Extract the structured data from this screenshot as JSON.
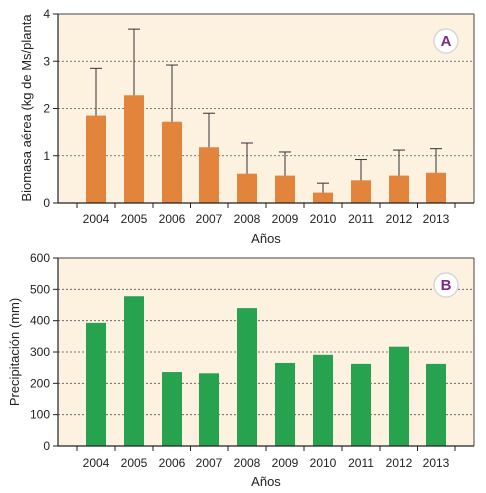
{
  "chart_data": [
    {
      "type": "bar",
      "panel_label": "A",
      "categories": [
        "2004",
        "2005",
        "2006",
        "2007",
        "2008",
        "2009",
        "2010",
        "2011",
        "2012",
        "2013"
      ],
      "values": [
        1.85,
        2.28,
        1.72,
        1.18,
        0.62,
        0.58,
        0.22,
        0.48,
        0.58,
        0.64
      ],
      "error_upper": [
        2.85,
        3.68,
        2.92,
        1.9,
        1.27,
        1.08,
        0.42,
        0.92,
        1.12,
        1.15
      ],
      "xlabel": "Años",
      "ylabel": "Biomasa aérea (kg de Ms/planta",
      "ylim": [
        0,
        4
      ],
      "yticks": [
        0,
        1,
        2,
        3,
        4
      ],
      "bar_color": "#e3843c",
      "grid": true
    },
    {
      "type": "bar",
      "panel_label": "B",
      "categories": [
        "2004",
        "2005",
        "2006",
        "2007",
        "2008",
        "2009",
        "2010",
        "2011",
        "2012",
        "2013"
      ],
      "values": [
        393,
        478,
        236,
        232,
        440,
        265,
        291,
        262,
        317,
        262
      ],
      "xlabel": "Años",
      "ylabel": "Precipitación (mm)",
      "ylim": [
        0,
        600
      ],
      "yticks": [
        0,
        100,
        200,
        300,
        400,
        500,
        600
      ],
      "bar_color": "#27a24f",
      "grid": true
    }
  ],
  "colors": {
    "plot_background": "#fdf1e0",
    "badge_border": "#d8d8d8",
    "badge_text": "#7a2b8e"
  }
}
